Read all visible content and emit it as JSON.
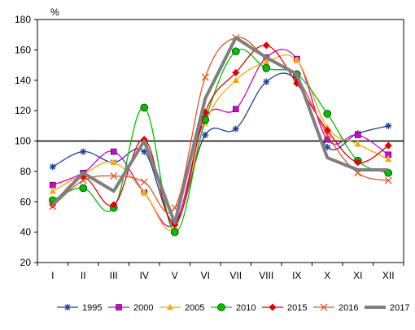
{
  "chart_data": {
    "type": "line",
    "unit_label": "%",
    "categories": [
      "I",
      "II",
      "III",
      "IV",
      "V",
      "VI",
      "VII",
      "VIII",
      "IX",
      "X",
      "XI",
      "XII"
    ],
    "ylim": [
      20,
      180
    ],
    "yticks": [
      20,
      40,
      60,
      80,
      100,
      120,
      140,
      160,
      180
    ],
    "reference_line": 100,
    "grid": false,
    "legend_position": "bottom",
    "series": [
      {
        "name": "1995",
        "color": "#1f3f9a",
        "marker": "star",
        "values": [
          83,
          93,
          86,
          93,
          47,
          104,
          108,
          139,
          140,
          96,
          105,
          110
        ]
      },
      {
        "name": "2000",
        "color": "#d400d4",
        "marker": "square",
        "values": [
          71,
          79,
          93,
          66,
          46,
          115,
          121,
          155,
          154,
          101,
          104,
          91
        ]
      },
      {
        "name": "2005",
        "color": "#ffa500",
        "marker": "triangle",
        "values": [
          67,
          78,
          86,
          66,
          43,
          112,
          140,
          152,
          153,
          109,
          98,
          88
        ]
      },
      {
        "name": "2010",
        "color": "#00c000",
        "marker": "circle",
        "values": [
          61,
          69,
          56,
          122,
          40,
          114,
          159,
          148,
          144,
          118,
          87,
          79
        ]
      },
      {
        "name": "2015",
        "color": "#e00000",
        "marker": "diamond",
        "values": [
          58,
          76,
          58,
          101,
          45,
          119,
          145,
          163,
          138,
          107,
          86,
          97
        ]
      },
      {
        "name": "2016",
        "color": "#e0552a",
        "marker": "x",
        "values": [
          57,
          74,
          77,
          73,
          56,
          142,
          168,
          155,
          142,
          104,
          79,
          74
        ]
      },
      {
        "name": "2017",
        "color": "#7f7f7f",
        "marker": "none",
        "width": 4,
        "values": [
          58,
          79,
          67,
          100,
          46,
          128,
          168,
          155,
          144,
          89,
          81,
          81
        ]
      }
    ]
  }
}
